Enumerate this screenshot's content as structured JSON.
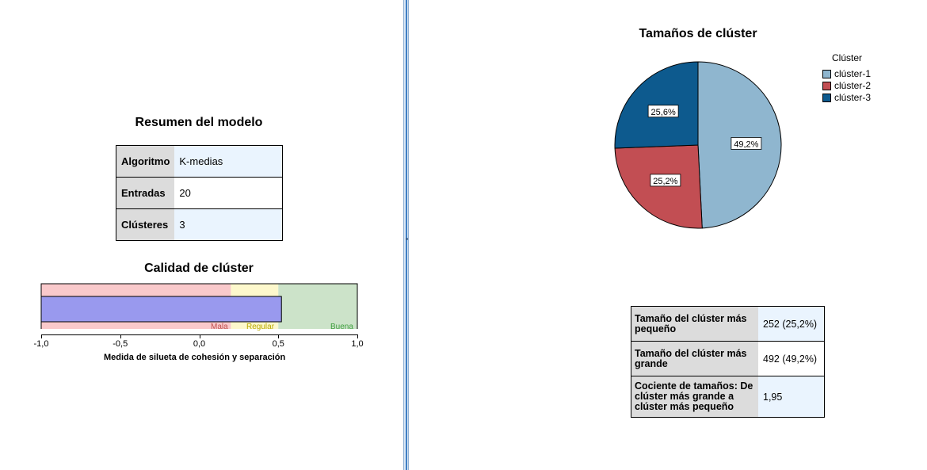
{
  "summary": {
    "title": "Resumen del modelo",
    "rows": [
      {
        "key": "Algoritmo",
        "value": "K-medias"
      },
      {
        "key": "Entradas",
        "value": "20"
      },
      {
        "key": "Clústeres",
        "value": "3"
      }
    ]
  },
  "quality": {
    "title": "Calidad de clúster",
    "value": 0.52,
    "zones": [
      {
        "label": "Mala",
        "from": -1.0,
        "to": 0.2,
        "color": "#f9c9cb",
        "label_color": "#c0504d"
      },
      {
        "label": "Regular",
        "from": 0.2,
        "to": 0.5,
        "color": "#fdf8cc",
        "label_color": "#b8a800"
      },
      {
        "label": "Buena",
        "from": 0.5,
        "to": 1.0,
        "color": "#cce3c9",
        "label_color": "#3f9f3f"
      }
    ],
    "bar_color": "#9999ee",
    "ticks": [
      "-1,0",
      "-0,5",
      "0,0",
      "0,5",
      "1,0"
    ],
    "tick_values": [
      -1.0,
      -0.5,
      0.0,
      0.5,
      1.0
    ],
    "axis_title": "Medida de silueta de cohesión y separación"
  },
  "sizes": {
    "title": "Tamaños de clúster",
    "legend_title": "Clúster",
    "chart_data": {
      "type": "pie",
      "title": "Tamaños de clúster",
      "legend_title": "Clúster",
      "slices": [
        {
          "name": "clúster-1",
          "value": 49.2,
          "label": "49,2%",
          "color": "#8fb6cf"
        },
        {
          "name": "clúster-2",
          "value": 25.2,
          "label": "25,2%",
          "color": "#c24e53"
        },
        {
          "name": "clúster-3",
          "value": 25.6,
          "label": "25,6%",
          "color": "#0d5a8e"
        }
      ]
    },
    "table": [
      {
        "key": "Tamaño del clúster más pequeño",
        "value": "252 (25,2%)"
      },
      {
        "key": "Tamaño del clúster más grande",
        "value": "492 (49,2%)"
      },
      {
        "key": "Cociente de tamaños: De clúster más grande a clúster más pequeño",
        "value": "1,95"
      }
    ]
  }
}
